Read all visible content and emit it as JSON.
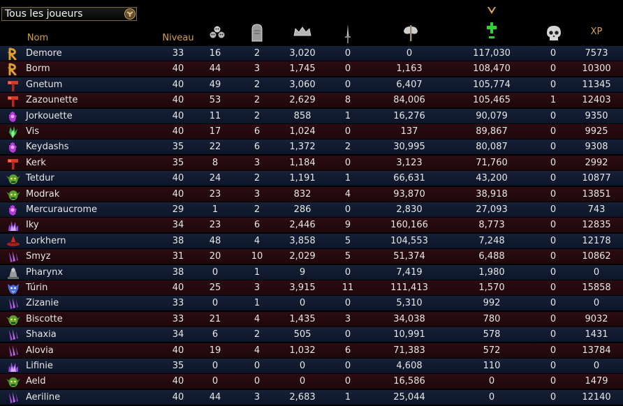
{
  "filter": {
    "label": "Tous les joueurs"
  },
  "columns": {
    "name": "Nom",
    "level": "Niveau",
    "xp": "XP",
    "icons": [
      "skulls-icon",
      "tombstone-icon",
      "crown-icon",
      "dagger-icon",
      "axe-icon",
      "healing-cross-icon",
      "skull-icon"
    ]
  },
  "colors": {
    "header": "#d4a046",
    "row_even": "#162036",
    "row_odd": "#2b0c12",
    "heal": "#2fd12f"
  },
  "players": [
    {
      "name": "Demore",
      "icon": "rune-icon",
      "level": "33",
      "c1": "16",
      "c2": "2",
      "c3": "3,020",
      "c4": "0",
      "c5": "0",
      "c6": "117,030",
      "c7": "0",
      "xp": "7573"
    },
    {
      "name": "Borm",
      "icon": "rune-icon",
      "level": "40",
      "c1": "44",
      "c2": "3",
      "c3": "1,745",
      "c4": "0",
      "c5": "1,163",
      "c6": "108,470",
      "c7": "0",
      "xp": "10300"
    },
    {
      "name": "Gnetum",
      "icon": "hammer-icon",
      "level": "40",
      "c1": "49",
      "c2": "2",
      "c3": "3,060",
      "c4": "0",
      "c5": "6,407",
      "c6": "105,774",
      "c7": "0",
      "xp": "11345"
    },
    {
      "name": "Zazounette",
      "icon": "hammer-icon",
      "level": "40",
      "c1": "53",
      "c2": "2",
      "c3": "2,629",
      "c4": "8",
      "c5": "84,006",
      "c6": "105,465",
      "c7": "1",
      "xp": "12403"
    },
    {
      "name": "Jorkouette",
      "icon": "magic-hand-icon",
      "level": "40",
      "c1": "11",
      "c2": "2",
      "c3": "858",
      "c4": "1",
      "c5": "16,276",
      "c6": "90,079",
      "c7": "0",
      "xp": "9350"
    },
    {
      "name": "Vis",
      "icon": "nature-hand-icon",
      "level": "40",
      "c1": "17",
      "c2": "6",
      "c3": "1,024",
      "c4": "0",
      "c5": "137",
      "c6": "89,867",
      "c7": "0",
      "xp": "9925"
    },
    {
      "name": "Keydashs",
      "icon": "magic-hand-icon",
      "level": "35",
      "c1": "22",
      "c2": "6",
      "c3": "1,372",
      "c4": "2",
      "c5": "30,995",
      "c6": "80,087",
      "c7": "0",
      "xp": "9308"
    },
    {
      "name": "Kerk",
      "icon": "hammer-icon",
      "level": "35",
      "c1": "8",
      "c2": "3",
      "c3": "1,184",
      "c4": "0",
      "c5": "3,123",
      "c6": "71,760",
      "c7": "0",
      "xp": "2992"
    },
    {
      "name": "Tetdur",
      "icon": "goblin-icon",
      "level": "40",
      "c1": "24",
      "c2": "2",
      "c3": "1,191",
      "c4": "1",
      "c5": "66,631",
      "c6": "43,200",
      "c7": "0",
      "xp": "10877"
    },
    {
      "name": "Modrak",
      "icon": "goblin-icon",
      "level": "40",
      "c1": "23",
      "c2": "3",
      "c3": "832",
      "c4": "4",
      "c5": "93,870",
      "c6": "38,918",
      "c7": "0",
      "xp": "13851"
    },
    {
      "name": "Mercuraucrome",
      "icon": "magic-hand-icon",
      "level": "29",
      "c1": "1",
      "c2": "2",
      "c3": "286",
      "c4": "0",
      "c5": "2,830",
      "c6": "27,093",
      "c7": "0",
      "xp": "743"
    },
    {
      "name": "Iky",
      "icon": "sorcery-icon",
      "level": "34",
      "c1": "23",
      "c2": "6",
      "c3": "2,446",
      "c4": "9",
      "c5": "160,166",
      "c6": "8,773",
      "c7": "0",
      "xp": "12835"
    },
    {
      "name": "Lorkhern",
      "icon": "red-hat-icon",
      "level": "38",
      "c1": "48",
      "c2": "4",
      "c3": "3,858",
      "c4": "5",
      "c5": "104,553",
      "c6": "7,248",
      "c7": "0",
      "xp": "12178"
    },
    {
      "name": "Smyz",
      "icon": "claw-icon",
      "level": "31",
      "c1": "20",
      "c2": "10",
      "c3": "2,029",
      "c4": "5",
      "c5": "51,374",
      "c6": "6,488",
      "c7": "0",
      "xp": "10862"
    },
    {
      "name": "Pharynx",
      "icon": "grey-figure-icon",
      "level": "38",
      "c1": "0",
      "c2": "1",
      "c3": "9",
      "c4": "0",
      "c5": "7,419",
      "c6": "1,980",
      "c7": "0",
      "xp": "0"
    },
    {
      "name": "Túrin",
      "icon": "wolf-icon",
      "level": "40",
      "c1": "25",
      "c2": "3",
      "c3": "3,915",
      "c4": "11",
      "c5": "111,413",
      "c6": "1,570",
      "c7": "0",
      "xp": "15858"
    },
    {
      "name": "Zizanie",
      "icon": "claw-icon",
      "level": "33",
      "c1": "0",
      "c2": "1",
      "c3": "0",
      "c4": "0",
      "c5": "5,310",
      "c6": "992",
      "c7": "0",
      "xp": "0"
    },
    {
      "name": "Biscotte",
      "icon": "goblin-icon",
      "level": "33",
      "c1": "21",
      "c2": "4",
      "c3": "1,435",
      "c4": "3",
      "c5": "34,038",
      "c6": "780",
      "c7": "0",
      "xp": "9032"
    },
    {
      "name": "Shaxia",
      "icon": "claw-icon",
      "level": "34",
      "c1": "6",
      "c2": "2",
      "c3": "505",
      "c4": "0",
      "c5": "10,991",
      "c6": "578",
      "c7": "0",
      "xp": "1431"
    },
    {
      "name": "Alovia",
      "icon": "claw-icon",
      "level": "40",
      "c1": "19",
      "c2": "4",
      "c3": "1,032",
      "c4": "6",
      "c5": "71,383",
      "c6": "572",
      "c7": "0",
      "xp": "13784"
    },
    {
      "name": "Lifinie",
      "icon": "sorcery-icon",
      "level": "35",
      "c1": "0",
      "c2": "0",
      "c3": "0",
      "c4": "0",
      "c5": "4,608",
      "c6": "110",
      "c7": "0",
      "xp": "0"
    },
    {
      "name": "Aeld",
      "icon": "goblin-icon",
      "level": "40",
      "c1": "0",
      "c2": "0",
      "c3": "0",
      "c4": "0",
      "c5": "16,586",
      "c6": "0",
      "c7": "0",
      "xp": "1479"
    },
    {
      "name": "Aeriline",
      "icon": "claw-icon",
      "level": "40",
      "c1": "44",
      "c2": "3",
      "c3": "2,683",
      "c4": "1",
      "c5": "25,044",
      "c6": "0",
      "c7": "0",
      "xp": "12140"
    }
  ]
}
